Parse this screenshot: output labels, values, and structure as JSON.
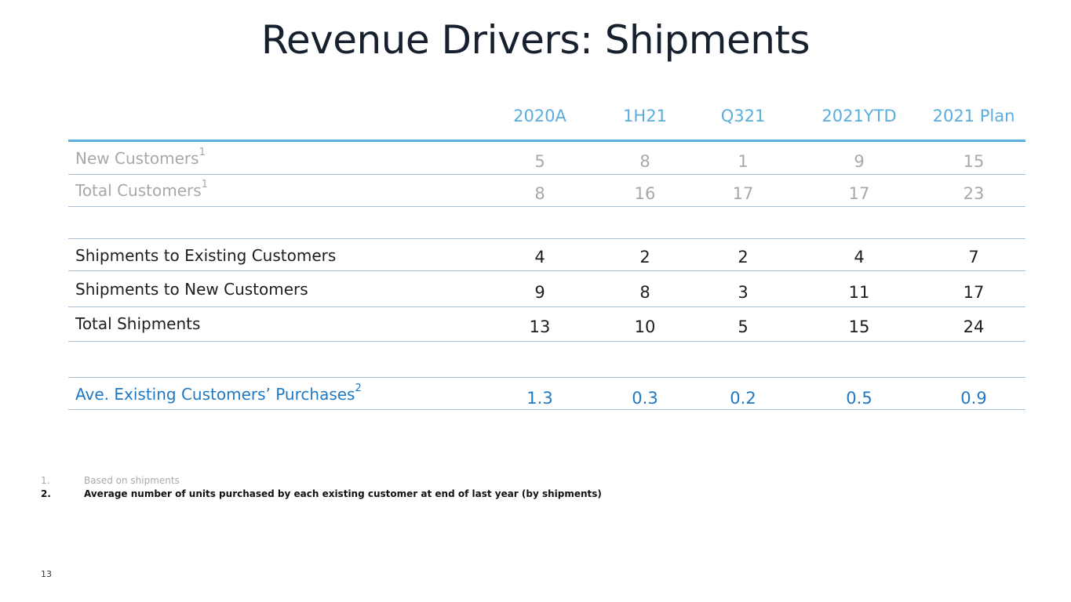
{
  "title": "Revenue Drivers: Shipments",
  "columns": [
    "2020A",
    "1H21",
    "Q321",
    "2021YTD",
    "2021 Plan"
  ],
  "rows": [
    {
      "label": "New Customers",
      "sup": "1",
      "values": [
        "5",
        "8",
        "1",
        "9",
        "15"
      ],
      "style": "grey"
    },
    {
      "label": "Total Customers",
      "sup": "1",
      "values": [
        "8",
        "16",
        "17",
        "17",
        "23"
      ],
      "style": "grey"
    },
    {
      "label": "Shipments to Existing Customers",
      "sup": "",
      "values": [
        "4",
        "2",
        "2",
        "4",
        "7"
      ],
      "style": "dark"
    },
    {
      "label": "Shipments to New Customers",
      "sup": "",
      "values": [
        "9",
        "8",
        "3",
        "11",
        "17"
      ],
      "style": "dark"
    },
    {
      "label": "Total Shipments",
      "sup": "",
      "values": [
        "13",
        "10",
        "5",
        "15",
        "24"
      ],
      "style": "dark"
    },
    {
      "label": "Ave. Existing Customers’ Purchases",
      "sup": "2",
      "values": [
        "1.3",
        "0.3",
        "0.2",
        "0.5",
        "0.9"
      ],
      "style": "blue"
    }
  ],
  "footnotes": [
    {
      "num": "1.",
      "text": "Based on shipments"
    },
    {
      "num": "2.",
      "text": "Average number of units purchased by each existing customer at end of last year (by shipments)"
    }
  ],
  "page_number": "13",
  "colors": {
    "header": "#5aaede",
    "accent": "#1f78c4",
    "muted": "#a8a8a8"
  }
}
